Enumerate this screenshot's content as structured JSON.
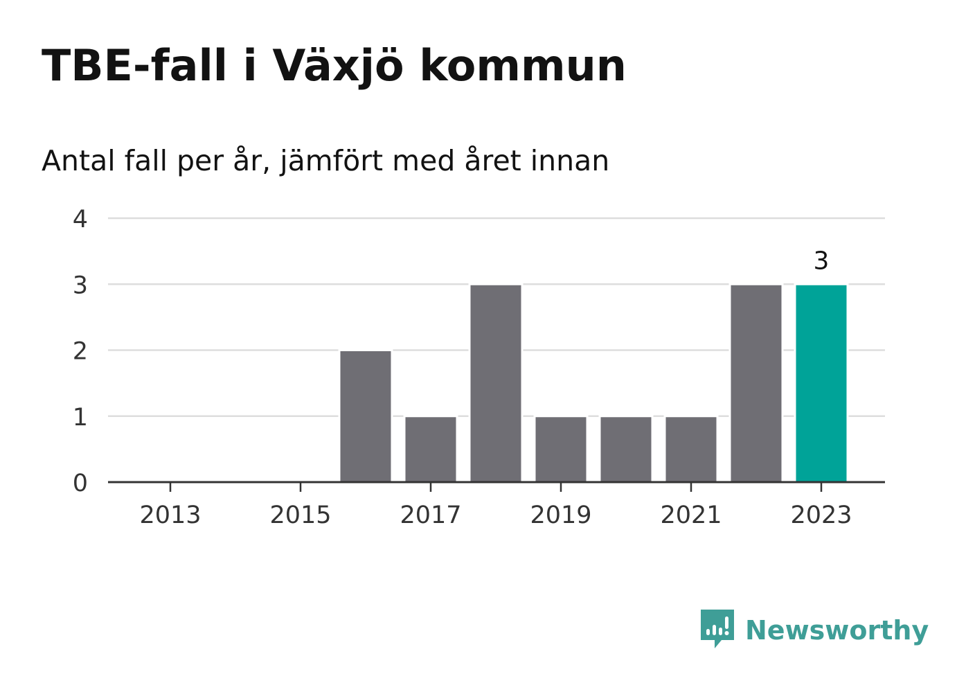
{
  "header": {
    "title": "TBE-fall i Växjö kommun",
    "subtitle": "Antal fall per år, jämfört med året innan"
  },
  "brand": {
    "name": "Newsworthy",
    "icon": "newsworthy-logo-icon",
    "color": "#3f9e97"
  },
  "colors": {
    "bar": "#6f6e74",
    "highlight": "#00a398",
    "grid": "#dddddd",
    "axis": "#333333",
    "text": "#333333"
  },
  "chart_data": {
    "type": "bar",
    "categories": [
      "2013",
      "2014",
      "2015",
      "2016",
      "2017",
      "2018",
      "2019",
      "2020",
      "2021",
      "2022",
      "2023"
    ],
    "values": [
      0,
      0,
      0,
      2,
      1,
      3,
      1,
      1,
      1,
      3,
      3
    ],
    "x_tick_labels": [
      "2013",
      "2015",
      "2017",
      "2019",
      "2021",
      "2023"
    ],
    "y_ticks": [
      0,
      1,
      2,
      3,
      4
    ],
    "ylim": [
      0,
      4
    ],
    "highlight_category": "2023",
    "data_labels": [
      {
        "category": "2023",
        "text": "3"
      }
    ],
    "grid": true,
    "legend": "none"
  }
}
